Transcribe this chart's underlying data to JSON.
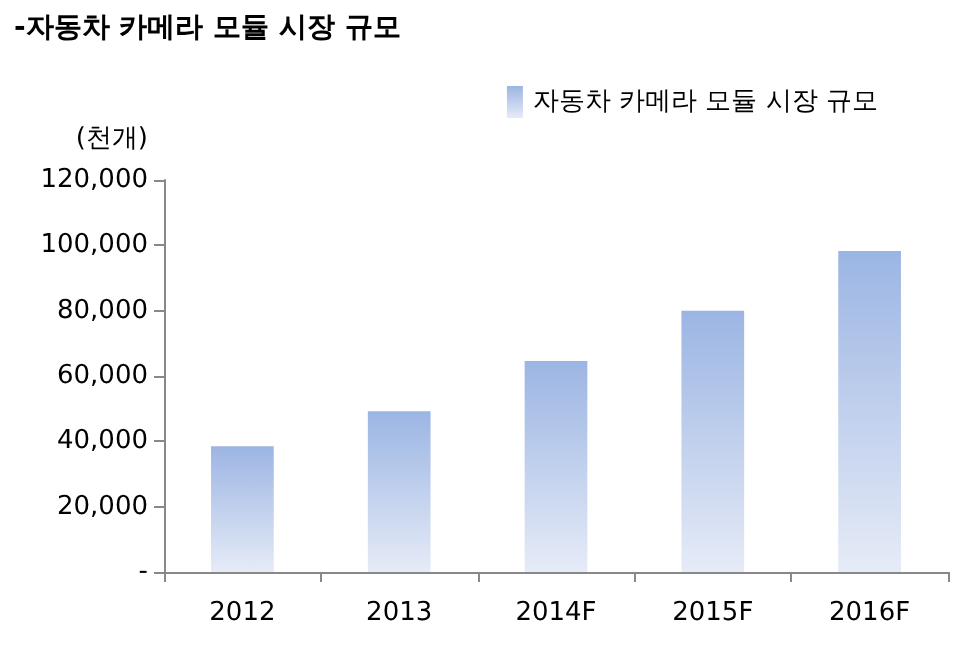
{
  "chart_data": {
    "type": "bar",
    "title": "-자동차 카메라 모듈 시장 규모",
    "ylabel": "(천개)",
    "categories": [
      "2012",
      "2013",
      "2014F",
      "2015F",
      "2016F"
    ],
    "series": [
      {
        "name": "자동차 카메라 모듈 시장 규모",
        "color": "#9bb5e3",
        "values": [
          38500,
          49200,
          64600,
          80000,
          98300
        ]
      }
    ],
    "ylim": [
      0,
      120000
    ],
    "yticks": [
      {
        "value": 0,
        "label": "-"
      },
      {
        "value": 20000,
        "label": "20,000"
      },
      {
        "value": 40000,
        "label": "40,000"
      },
      {
        "value": 60000,
        "label": "60,000"
      },
      {
        "value": 80000,
        "label": "80,000"
      },
      {
        "value": 100000,
        "label": "100,000"
      },
      {
        "value": 120000,
        "label": "120,000"
      }
    ],
    "grid": false,
    "legend": "top right"
  }
}
